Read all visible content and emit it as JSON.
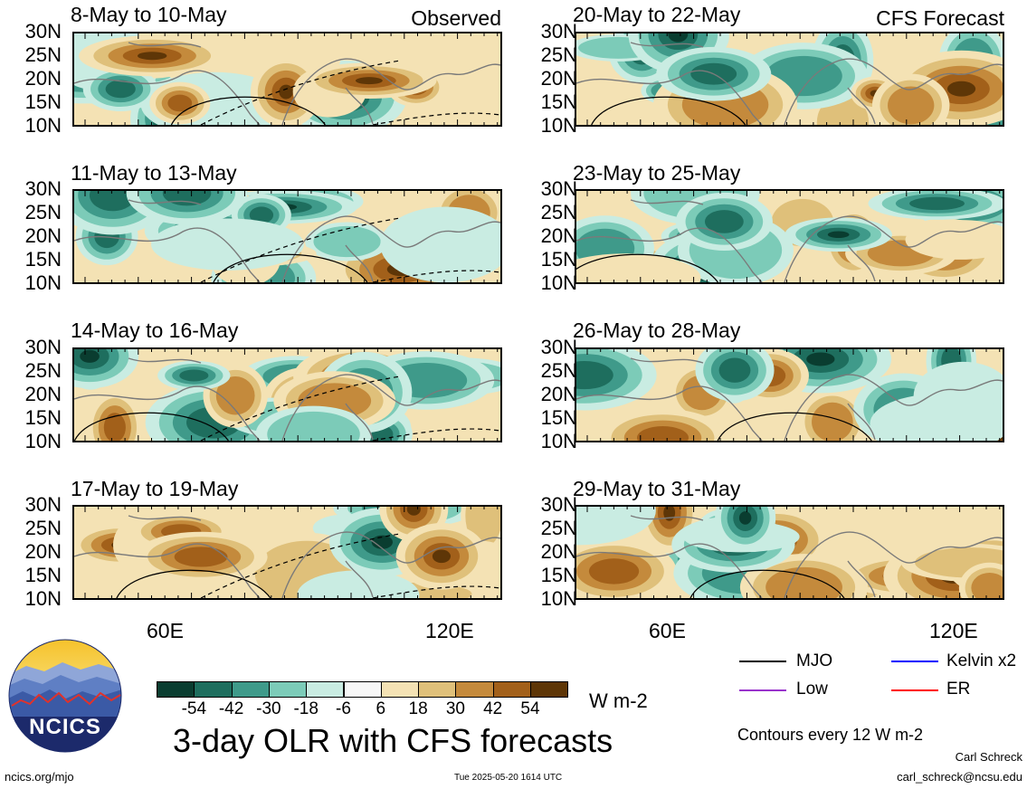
{
  "left_header": "Observed",
  "right_header": "CFS Forecast",
  "panels_left": [
    {
      "title": "8-May to 10-May",
      "seed": 3
    },
    {
      "title": "11-May to 13-May",
      "seed": 7
    },
    {
      "title": "14-May to 16-May",
      "seed": 11
    },
    {
      "title": "17-May to 19-May",
      "seed": 15
    }
  ],
  "panels_right": [
    {
      "title": "20-May to 22-May",
      "seed": 21
    },
    {
      "title": "23-May to 25-May",
      "seed": 27
    },
    {
      "title": "26-May to 28-May",
      "seed": 33
    },
    {
      "title": "29-May to 31-May",
      "seed": 39
    }
  ],
  "lat_labels": [
    "30N",
    "25N",
    "20N",
    "15N",
    "10N"
  ],
  "lon_labels": [
    "60E",
    "120E"
  ],
  "colorbar": {
    "labels": [
      "-54",
      "-42",
      "-30",
      "-18",
      "-6",
      "6",
      "18",
      "30",
      "42",
      "54"
    ],
    "colors": [
      "#0a3d30",
      "#1e6e5e",
      "#3f9a8a",
      "#7ccbb8",
      "#c9ece2",
      "#f7f7f7",
      "#f4e2b4",
      "#dfc07a",
      "#c48a3c",
      "#a2601a",
      "#5e3607"
    ],
    "units": "W m-2"
  },
  "legend": {
    "mjo": "MJO",
    "kelvin": "Kelvin x2",
    "low": "Low",
    "er": "ER",
    "mjo_color": "#000000",
    "kelvin_color": "#0000ff",
    "low_color": "#9933cc",
    "er_color": "#ff0000",
    "contour_note": "Contours every 12 W m-2"
  },
  "main_title": "3-day OLR with CFS forecasts",
  "logo_text": "NCICS",
  "url": "ncics.org/mjo",
  "timestamp": "Tue 2025-05-20 1614 UTC",
  "author": "Carl Schreck",
  "email": "carl_schreck@ncsu.edu"
}
